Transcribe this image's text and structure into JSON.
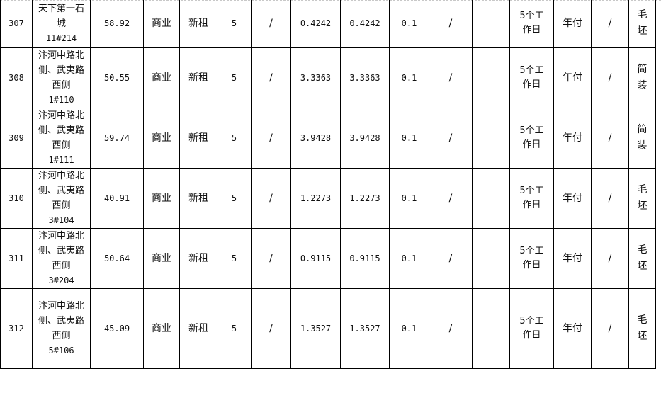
{
  "rows": [
    {
      "no": "307",
      "name": "天下第一石城",
      "code": "11#214",
      "area": "58.92",
      "use": "商业",
      "type": "新租",
      "years": "5",
      "c7": "/",
      "price1": "0.4242",
      "price2": "0.4242",
      "c10": "0.1",
      "c11": "/",
      "c12": "",
      "term": "5个工作日",
      "pay": "年付",
      "c15": "/",
      "deco": "毛坯"
    },
    {
      "no": "308",
      "name": "汴河中路北侧、武夷路西侧",
      "code": "1#110",
      "area": "50.55",
      "use": "商业",
      "type": "新租",
      "years": "5",
      "c7": "/",
      "price1": "3.3363",
      "price2": "3.3363",
      "c10": "0.1",
      "c11": "/",
      "c12": "",
      "term": "5个工作日",
      "pay": "年付",
      "c15": "/",
      "deco": "简装"
    },
    {
      "no": "309",
      "name": "汴河中路北侧、武夷路西侧",
      "code": "1#111",
      "area": "59.74",
      "use": "商业",
      "type": "新租",
      "years": "5",
      "c7": "/",
      "price1": "3.9428",
      "price2": "3.9428",
      "c10": "0.1",
      "c11": "/",
      "c12": "",
      "term": "5个工作日",
      "pay": "年付",
      "c15": "/",
      "deco": "简装"
    },
    {
      "no": "310",
      "name": "汴河中路北侧、武夷路西侧",
      "code": "3#104",
      "area": "40.91",
      "use": "商业",
      "type": "新租",
      "years": "5",
      "c7": "/",
      "price1": "1.2273",
      "price2": "1.2273",
      "c10": "0.1",
      "c11": "/",
      "c12": "",
      "term": "5个工作日",
      "pay": "年付",
      "c15": "/",
      "deco": "毛坯"
    },
    {
      "no": "311",
      "name": "汴河中路北侧、武夷路西侧",
      "code": "3#204",
      "area": "50.64",
      "use": "商业",
      "type": "新租",
      "years": "5",
      "c7": "/",
      "price1": "0.9115",
      "price2": "0.9115",
      "c10": "0.1",
      "c11": "/",
      "c12": "",
      "term": "5个工作日",
      "pay": "年付",
      "c15": "/",
      "deco": "毛坯"
    },
    {
      "no": "312",
      "name": "汴河中路北侧、武夷路西侧",
      "code": "5#106",
      "area": "45.09",
      "use": "商业",
      "type": "新租",
      "years": "5",
      "c7": "/",
      "price1": "1.3527",
      "price2": "1.3527",
      "c10": "0.1",
      "c11": "/",
      "c12": "",
      "term": "5个工作日",
      "pay": "年付",
      "c15": "/",
      "deco": "毛坯"
    }
  ]
}
